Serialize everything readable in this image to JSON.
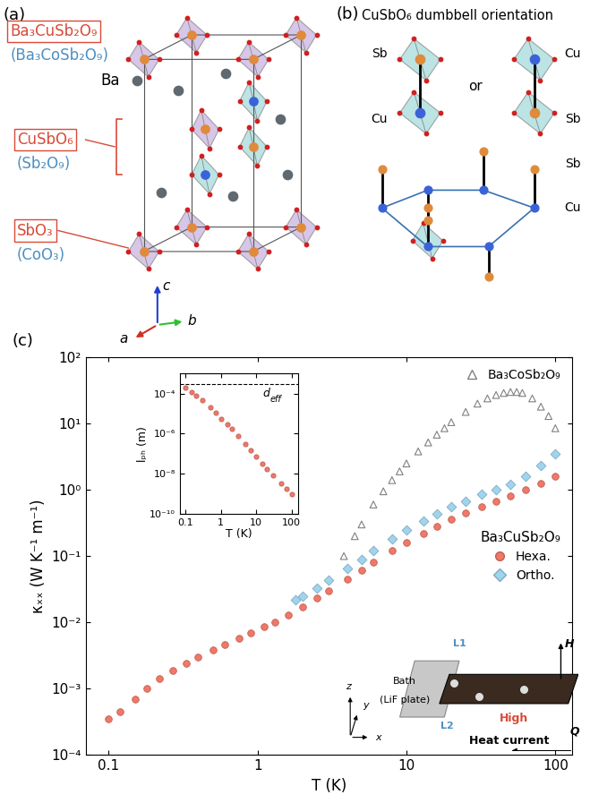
{
  "panels": {
    "a": {
      "label": "(a)",
      "compound": "Ba₃CuSb₂O₉",
      "compound_ref": "(Ba₃CoSb₂O₉)",
      "atom_label": "Ba",
      "layer1": "CuSbO₆",
      "layer1_ref": "(Sb₂O₉)",
      "layer2": "SbO₃",
      "layer2_ref": "(CoO₃)",
      "axes_labels": [
        "c",
        "a",
        "b"
      ]
    },
    "b": {
      "label": "(b)",
      "title": "CuSbO₆ dumbbell orientation",
      "left_dumbbell": [
        "Sb",
        "Cu"
      ],
      "separator": "or",
      "right_dumbbell": [
        "Cu",
        "Sb"
      ],
      "lattice_labels": [
        "Sb",
        "Cu"
      ]
    },
    "c": {
      "label": "(c)",
      "bath": "Bath",
      "bath_note": "(LiF plate)",
      "leads": [
        "L1",
        "L2"
      ],
      "heater": "High",
      "field": "H",
      "current": "Heat current",
      "current_symbol": "Q",
      "axes_labels": [
        "x",
        "y",
        "z"
      ]
    }
  },
  "chart_data": [
    {
      "type": "scatter",
      "x_label": "T (K)",
      "y_label": "κₓₓ (W K⁻¹ m⁻¹)",
      "log": true,
      "xlim": [
        0.07,
        130
      ],
      "ylim": [
        0.0001,
        100
      ],
      "xticks": [
        0.1,
        1,
        10,
        100
      ],
      "yticks": [
        {
          "value": 0.0001,
          "label": "10⁻⁴"
        },
        {
          "value": 0.001,
          "label": "10⁻³"
        },
        {
          "value": 0.01,
          "label": "10⁻²"
        },
        {
          "value": 0.1,
          "label": "10⁻¹"
        },
        {
          "value": 1,
          "label": "10⁰"
        },
        {
          "value": 10,
          "label": "10¹"
        },
        {
          "value": 100,
          "label": "10²"
        }
      ],
      "legend": "upper right",
      "series": [
        {
          "name": "Ba₃CoSb₂O₉",
          "color": "#808080",
          "marker": "triangle_open",
          "x": [
            3.8,
            4.5,
            5,
            6,
            7,
            8,
            9,
            10,
            12,
            14,
            16,
            18,
            20,
            25,
            30,
            35,
            40,
            45,
            50,
            55,
            60,
            70,
            80,
            90,
            100
          ],
          "values": [
            0.1,
            0.2,
            0.3,
            0.6,
            0.95,
            1.4,
            1.9,
            2.5,
            3.8,
            5.2,
            6.8,
            8.5,
            10.5,
            15,
            20,
            24,
            27,
            29,
            30,
            30,
            29,
            24,
            18,
            13,
            8.5
          ]
        },
        {
          "name": "Hexa.",
          "group": "Ba₃CuSb₂O₉",
          "color": "#f07868",
          "marker": "circle",
          "x": [
            0.1,
            0.12,
            0.15,
            0.18,
            0.22,
            0.27,
            0.33,
            0.4,
            0.5,
            0.6,
            0.75,
            0.9,
            1.1,
            1.3,
            1.6,
            2,
            2.5,
            3,
            4,
            5,
            6,
            8,
            10,
            13,
            16,
            20,
            25,
            32,
            40,
            50,
            63,
            80,
            100
          ],
          "values": [
            0.00035,
            0.00045,
            0.0007,
            0.001,
            0.0014,
            0.0019,
            0.0024,
            0.003,
            0.0038,
            0.0046,
            0.0058,
            0.007,
            0.0085,
            0.01,
            0.013,
            0.017,
            0.023,
            0.03,
            0.045,
            0.062,
            0.08,
            0.12,
            0.16,
            0.22,
            0.28,
            0.36,
            0.45,
            0.56,
            0.68,
            0.82,
            1.0,
            1.25,
            1.6
          ]
        },
        {
          "name": "Ortho.",
          "group": "Ba₃CuSb₂O₉",
          "color": "#9fd4ee",
          "marker": "diamond",
          "x": [
            1.8,
            2,
            2.5,
            3,
            4,
            5,
            6,
            8,
            10,
            13,
            16,
            20,
            25,
            32,
            40,
            50,
            63,
            80,
            100
          ],
          "values": [
            0.022,
            0.025,
            0.033,
            0.043,
            0.065,
            0.09,
            0.12,
            0.18,
            0.25,
            0.34,
            0.43,
            0.55,
            0.68,
            0.85,
            1.0,
            1.2,
            1.6,
            2.3,
            3.5
          ]
        }
      ]
    },
    {
      "type": "scatter",
      "x_label": "T (K)",
      "y_label": "lₚₕ (m)",
      "log": true,
      "xlim": [
        0.07,
        150
      ],
      "ylim": [
        1e-10,
        0.001
      ],
      "xticks": [
        0.1,
        1,
        10,
        100
      ],
      "yticks": [
        {
          "value": 1e-10,
          "label": "10⁻¹⁰"
        },
        {
          "value": 1e-08,
          "label": "10⁻⁸"
        },
        {
          "value": 1e-06,
          "label": "10⁻⁶"
        },
        {
          "value": 0.0001,
          "label": "10⁻⁴"
        }
      ],
      "series": [
        {
          "color": "#f07868",
          "marker": "circle",
          "x": [
            0.1,
            0.15,
            0.2,
            0.3,
            0.5,
            0.7,
            1,
            1.5,
            2,
            3,
            5,
            7,
            10,
            15,
            20,
            30,
            50,
            70,
            100
          ],
          "values": [
            0.0002,
            0.00012,
            8e-05,
            4.5e-05,
            2e-05,
            1.1e-05,
            5.5e-06,
            2.8e-06,
            1.7e-06,
            8e-07,
            3e-07,
            1.5e-07,
            7e-08,
            3.2e-08,
            1.8e-08,
            8e-09,
            3.2e-09,
            1.7e-09,
            1e-09
          ]
        }
      ],
      "reference_line": {
        "value": 0.0003,
        "label": "d",
        "label_subscript": "eff",
        "line_style": "dashed"
      }
    }
  ]
}
